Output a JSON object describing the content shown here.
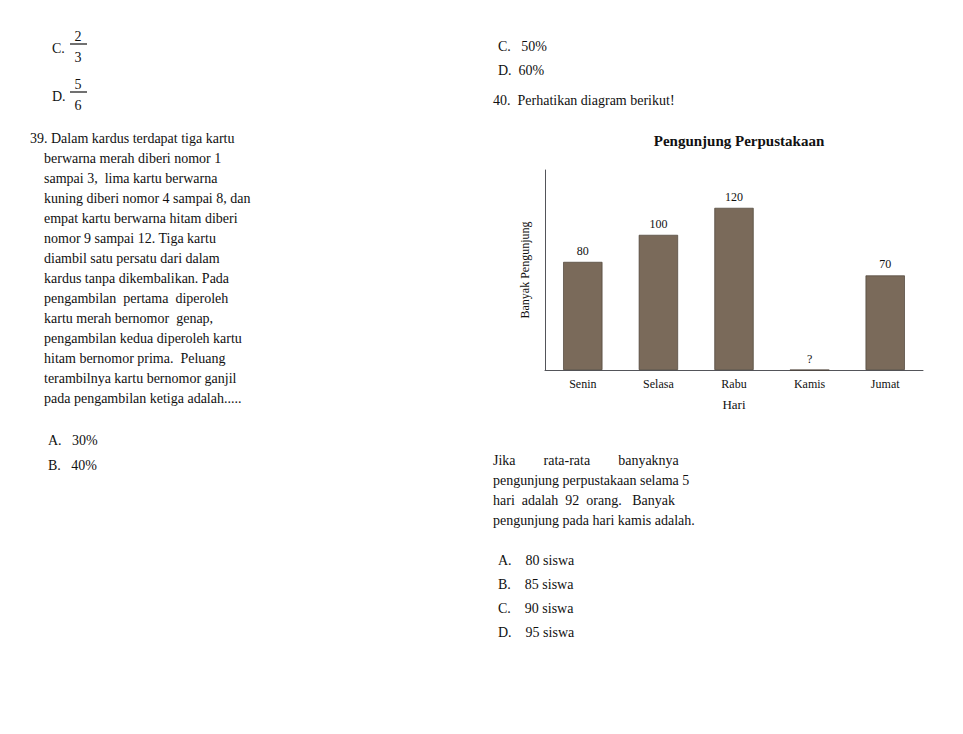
{
  "chart_data": {
    "type": "bar",
    "title": "Pengunjung Perpustakaan",
    "x_label": "Hari",
    "y_label": "Banyak Pengunjung",
    "categories": [
      "Senin",
      "Selasa",
      "Rabu",
      "Kamis",
      "Jumat"
    ],
    "values": [
      80,
      100,
      120,
      0,
      70
    ],
    "value_labels": [
      "80",
      "100",
      "120",
      "?",
      "70"
    ],
    "data_labels": true,
    "color": "#7a6a5a",
    "ylim": [
      0,
      148
    ],
    "grid": false,
    "tick_labels": "x",
    "annotations": [
      "C.",
      "2",
      "3",
      "D.",
      "5",
      "6",
      "39. Dalam kardus terdapat tiga kartu\n    berwarna merah diberi nomor 1\n    sampai 3,  lima kartu berwarna\n    kuning diberi nomor 4 sampai 8, dan\n    empat kartu berwarna hitam diberi\n    nomor 9 sampai 12. Tiga kartu\n    diambil satu persatu dari dalam\n    kardus tanpa dikembalikan. Pada\n    pengambilan  pertama  diperoleh\n    kartu merah bernomor  genap,\n    pengambilan kedua diperoleh kartu\n    hitam bernomor prima.  Peluang\n    terambilnya kartu bernomor ganjil\n    pada pengambilan ketiga adalah.....",
      "A.   30%",
      "B.   40%",
      "C.   50%",
      "D.  60%",
      "40.  Perhatikan diagram berikut!",
      "Jika        rata-rata        banyaknya\npengunjung perpustakaan selama 5\nhari  adalah  92  orang.   Banyak\npengunjung pada hari kamis adalah.",
      "A.    80 siswa",
      "B.    85 siswa",
      "C.    90 siswa",
      "D.    95 siswa"
    ]
  }
}
